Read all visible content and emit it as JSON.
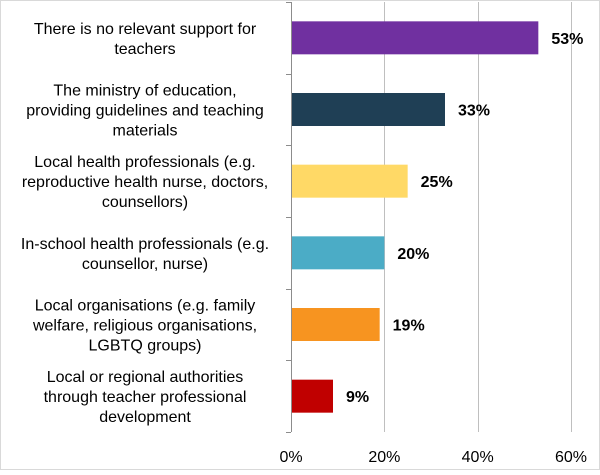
{
  "chart_data": {
    "type": "bar",
    "orientation": "horizontal",
    "categories": [
      [
        "There is no relevant support for",
        "teachers"
      ],
      [
        "The ministry of education,",
        "providing guidelines and teaching",
        "materials"
      ],
      [
        "Local health professionals (e.g.",
        "reproductive health nurse, doctors,",
        "counsellors)"
      ],
      [
        "In-school health professionals (e.g.",
        "counsellor, nurse)"
      ],
      [
        "Local organisations (e.g. family",
        "welfare, religious organisations,",
        "LGBTQ groups)"
      ],
      [
        "Local or regional authorities",
        "through teacher professional",
        "development"
      ]
    ],
    "values": [
      53,
      33,
      25,
      20,
      19,
      9
    ],
    "value_labels": [
      "53%",
      "33%",
      "25%",
      "20%",
      "19%",
      "9%"
    ],
    "colors": [
      "#7030a0",
      "#1f3f55",
      "#ffd966",
      "#4bacc6",
      "#f79420",
      "#c00000"
    ],
    "xlim": [
      0,
      60
    ],
    "x_ticks": [
      0,
      20,
      40,
      60
    ],
    "x_tick_labels": [
      "0%",
      "20%",
      "40%",
      "60%"
    ],
    "grid": "vertical",
    "legend": "none"
  }
}
